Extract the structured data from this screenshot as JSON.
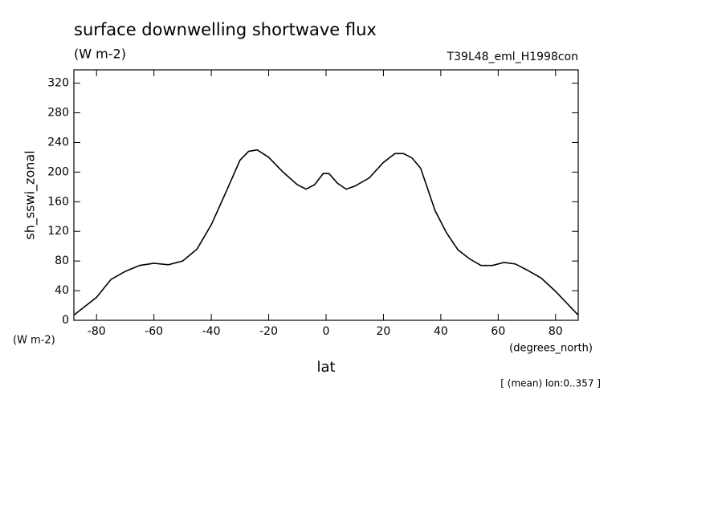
{
  "chart_data": {
    "type": "line",
    "title": "surface downwelling shortwave flux",
    "units": "(W m-2)",
    "run": "T39L48_eml_H1998con",
    "ylabel": "sh_sswi_zonal",
    "yunits": "(W m-2)",
    "xunits": "(degrees_north)",
    "xlabel": "lat",
    "note": "[ (mean) lon:0..357 ]",
    "x": [
      -87.9,
      -80,
      -75,
      -70,
      -65,
      -60,
      -55,
      -50,
      -45,
      -40,
      -35,
      -30,
      -27,
      -24,
      -20,
      -15,
      -10,
      -7,
      -4,
      -1,
      1,
      4,
      7,
      10,
      15,
      20,
      24,
      27,
      30,
      33,
      38,
      42,
      46,
      50,
      54,
      58,
      62,
      66,
      70,
      75,
      80,
      87.9
    ],
    "series": [
      {
        "name": "sh_sswi_zonal",
        "color": "#000000",
        "values": [
          7,
          31,
          55,
          66,
          74,
          77,
          75,
          80,
          96,
          129,
          172,
          216,
          228,
          230,
          220,
          200,
          183,
          177,
          183,
          198,
          198,
          185,
          177,
          181,
          192,
          213,
          225,
          225,
          219,
          205,
          148,
          118,
          95,
          83,
          74,
          74,
          78,
          76,
          68,
          57,
          39,
          7
        ]
      }
    ],
    "xlim": [
      -87.9,
      87.9
    ],
    "ylim": [
      0,
      338
    ],
    "xticks": [
      -80,
      -60,
      -40,
      -20,
      0,
      20,
      40,
      60,
      80
    ],
    "yticks": [
      0,
      40,
      80,
      120,
      160,
      200,
      240,
      280,
      320
    ],
    "grid": false
  }
}
